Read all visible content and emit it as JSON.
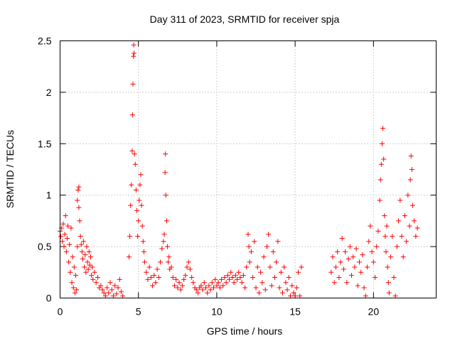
{
  "chart_data": {
    "type": "scatter",
    "title": "Day 311 of 2023, SRMTID for receiver spja",
    "xlabel": "GPS time / hours",
    "ylabel": "SRMTID / TECUs",
    "xlim": [
      0,
      24
    ],
    "ylim": [
      0,
      2.5
    ],
    "x_ticks": [
      0,
      5,
      10,
      15,
      20
    ],
    "x_tick_labels": [
      "0",
      "5",
      "10",
      "15",
      "20"
    ],
    "y_ticks": [
      0,
      0.5,
      1,
      1.5,
      2,
      2.5
    ],
    "y_tick_labels": [
      "0",
      "0.5",
      "1",
      "1.5",
      "2",
      "2.5"
    ],
    "grid": true,
    "marker": "+",
    "color": "#ff0000",
    "series": [
      {
        "name": "SRMTID",
        "points": [
          [
            0.0,
            0.65
          ],
          [
            0.05,
            0.6
          ],
          [
            0.1,
            0.68
          ],
          [
            0.15,
            0.55
          ],
          [
            0.2,
            0.72
          ],
          [
            0.25,
            0.5
          ],
          [
            0.3,
            0.62
          ],
          [
            0.35,
            0.8
          ],
          [
            0.4,
            0.45
          ],
          [
            0.45,
            0.58
          ],
          [
            0.5,
            0.7
          ],
          [
            0.55,
            0.35
          ],
          [
            0.6,
            0.52
          ],
          [
            0.65,
            0.25
          ],
          [
            0.7,
            0.68
          ],
          [
            0.75,
            0.15
          ],
          [
            0.8,
            0.4
          ],
          [
            0.85,
            0.1
          ],
          [
            0.9,
            0.3
          ],
          [
            0.95,
            0.05
          ],
          [
            1.0,
            0.22
          ],
          [
            1.05,
            0.08
          ],
          [
            1.1,
            0.5
          ],
          [
            1.1,
            0.95
          ],
          [
            1.15,
            1.05
          ],
          [
            1.2,
            1.08
          ],
          [
            1.2,
            0.88
          ],
          [
            1.25,
            0.75
          ],
          [
            1.3,
            0.6
          ],
          [
            1.35,
            0.52
          ],
          [
            1.4,
            0.45
          ],
          [
            1.45,
            0.38
          ],
          [
            1.5,
            0.55
          ],
          [
            1.55,
            0.3
          ],
          [
            1.6,
            0.42
          ],
          [
            1.65,
            0.25
          ],
          [
            1.7,
            0.5
          ],
          [
            1.75,
            0.35
          ],
          [
            1.8,
            0.28
          ],
          [
            1.85,
            0.45
          ],
          [
            1.9,
            0.32
          ],
          [
            1.95,
            0.4
          ],
          [
            2.0,
            0.22
          ],
          [
            2.05,
            0.3
          ],
          [
            2.1,
            0.18
          ],
          [
            2.2,
            0.25
          ],
          [
            2.3,
            0.15
          ],
          [
            2.4,
            0.2
          ],
          [
            2.5,
            0.1
          ],
          [
            2.6,
            0.12
          ],
          [
            2.7,
            0.08
          ],
          [
            2.8,
            0.05
          ],
          [
            2.9,
            0.02
          ],
          [
            3.0,
            0.1
          ],
          [
            3.1,
            0.05
          ],
          [
            3.2,
            0.15
          ],
          [
            3.3,
            0.08
          ],
          [
            3.4,
            0.02
          ],
          [
            3.5,
            0.12
          ],
          [
            3.6,
            0.04
          ],
          [
            3.7,
            0.1
          ],
          [
            3.8,
            0.18
          ],
          [
            3.9,
            0.06
          ],
          [
            4.0,
            0.02
          ],
          [
            4.4,
            0.4
          ],
          [
            4.45,
            0.6
          ],
          [
            4.5,
            0.9
          ],
          [
            4.55,
            1.1
          ],
          [
            4.6,
            1.43
          ],
          [
            4.62,
            1.78
          ],
          [
            4.65,
            2.08
          ],
          [
            4.68,
            2.35
          ],
          [
            4.7,
            2.46
          ],
          [
            4.72,
            2.38
          ],
          [
            4.75,
            1.4
          ],
          [
            4.8,
            1.3
          ],
          [
            4.85,
            1.05
          ],
          [
            4.9,
            0.85
          ],
          [
            4.95,
            0.6
          ],
          [
            5.0,
            0.75
          ],
          [
            5.05,
            0.95
          ],
          [
            5.1,
            1.1
          ],
          [
            5.15,
            1.2
          ],
          [
            5.2,
            0.9
          ],
          [
            5.25,
            0.7
          ],
          [
            5.3,
            0.55
          ],
          [
            5.35,
            0.45
          ],
          [
            5.4,
            0.35
          ],
          [
            5.5,
            0.25
          ],
          [
            5.6,
            0.18
          ],
          [
            5.7,
            0.3
          ],
          [
            5.8,
            0.2
          ],
          [
            5.9,
            0.12
          ],
          [
            6.0,
            0.22
          ],
          [
            6.1,
            0.15
          ],
          [
            6.2,
            0.28
          ],
          [
            6.3,
            0.2
          ],
          [
            6.4,
            0.35
          ],
          [
            6.5,
            0.48
          ],
          [
            6.6,
            0.55
          ],
          [
            6.65,
            0.62
          ],
          [
            6.7,
            1.22
          ],
          [
            6.72,
            1.4
          ],
          [
            6.75,
            1.0
          ],
          [
            6.8,
            0.75
          ],
          [
            6.85,
            0.5
          ],
          [
            6.9,
            0.35
          ],
          [
            6.95,
            0.4
          ],
          [
            7.0,
            0.28
          ],
          [
            7.1,
            0.3
          ],
          [
            7.2,
            0.2
          ],
          [
            7.3,
            0.12
          ],
          [
            7.4,
            0.18
          ],
          [
            7.5,
            0.1
          ],
          [
            7.6,
            0.15
          ],
          [
            7.7,
            0.08
          ],
          [
            7.8,
            0.12
          ],
          [
            7.9,
            0.18
          ],
          [
            8.0,
            0.22
          ],
          [
            8.1,
            0.3
          ],
          [
            8.2,
            0.35
          ],
          [
            8.3,
            0.28
          ],
          [
            8.4,
            0.2
          ],
          [
            8.5,
            0.15
          ],
          [
            8.6,
            0.1
          ],
          [
            8.7,
            0.08
          ],
          [
            8.8,
            0.05
          ],
          [
            8.9,
            0.1
          ],
          [
            9.0,
            0.12
          ],
          [
            9.1,
            0.08
          ],
          [
            9.2,
            0.15
          ],
          [
            9.3,
            0.1
          ],
          [
            9.4,
            0.05
          ],
          [
            9.5,
            0.12
          ],
          [
            9.6,
            0.08
          ],
          [
            9.7,
            0.15
          ],
          [
            9.8,
            0.1
          ],
          [
            9.9,
            0.18
          ],
          [
            10.0,
            0.12
          ],
          [
            10.1,
            0.15
          ],
          [
            10.2,
            0.1
          ],
          [
            10.3,
            0.18
          ],
          [
            10.4,
            0.12
          ],
          [
            10.5,
            0.2
          ],
          [
            10.6,
            0.15
          ],
          [
            10.7,
            0.22
          ],
          [
            10.8,
            0.18
          ],
          [
            10.9,
            0.25
          ],
          [
            11.0,
            0.2
          ],
          [
            11.1,
            0.15
          ],
          [
            11.2,
            0.22
          ],
          [
            11.3,
            0.18
          ],
          [
            11.4,
            0.25
          ],
          [
            11.5,
            0.2
          ],
          [
            11.6,
            0.15
          ],
          [
            11.7,
            0.22
          ],
          [
            11.8,
            0.1
          ],
          [
            11.9,
            0.3
          ],
          [
            12.0,
            0.62
          ],
          [
            12.05,
            0.5
          ],
          [
            12.1,
            0.35
          ],
          [
            12.2,
            0.45
          ],
          [
            12.3,
            0.2
          ],
          [
            12.4,
            0.55
          ],
          [
            12.5,
            0.1
          ],
          [
            12.6,
            0.3
          ],
          [
            12.7,
            0.05
          ],
          [
            12.8,
            0.25
          ],
          [
            12.9,
            0.15
          ],
          [
            13.0,
            0.4
          ],
          [
            13.1,
            0.08
          ],
          [
            13.2,
            0.5
          ],
          [
            13.3,
            0.62
          ],
          [
            13.4,
            0.3
          ],
          [
            13.5,
            0.12
          ],
          [
            13.6,
            0.45
          ],
          [
            13.7,
            0.2
          ],
          [
            13.8,
            0.35
          ],
          [
            13.9,
            0.55
          ],
          [
            14.0,
            0.1
          ],
          [
            14.1,
            0.25
          ],
          [
            14.2,
            0.05
          ],
          [
            14.3,
            0.3
          ],
          [
            14.4,
            0.15
          ],
          [
            14.5,
            0.08
          ],
          [
            14.6,
            0.2
          ],
          [
            14.7,
            0.02
          ],
          [
            14.8,
            0.12
          ],
          [
            14.9,
            0.05
          ],
          [
            15.0,
            0.02
          ],
          [
            15.1,
            0.1
          ],
          [
            15.2,
            0.25
          ],
          [
            15.3,
            0.02
          ],
          [
            15.4,
            0.3
          ],
          [
            17.3,
            0.25
          ],
          [
            17.4,
            0.4
          ],
          [
            17.5,
            0.15
          ],
          [
            17.6,
            0.3
          ],
          [
            17.7,
            0.45
          ],
          [
            17.8,
            0.2
          ],
          [
            17.9,
            0.35
          ],
          [
            18.0,
            0.58
          ],
          [
            18.1,
            0.28
          ],
          [
            18.2,
            0.45
          ],
          [
            18.3,
            0.15
          ],
          [
            18.4,
            0.38
          ],
          [
            18.5,
            0.5
          ],
          [
            18.6,
            0.22
          ],
          [
            18.7,
            0.4
          ],
          [
            18.8,
            0.3
          ],
          [
            18.9,
            0.48
          ],
          [
            19.0,
            0.12
          ],
          [
            19.1,
            0.35
          ],
          [
            19.2,
            0.25
          ],
          [
            19.3,
            0.42
          ],
          [
            19.4,
            0.1
          ],
          [
            19.5,
            0.02
          ],
          [
            19.6,
            0.3
          ],
          [
            19.7,
            0.55
          ],
          [
            19.8,
            0.7
          ],
          [
            19.9,
            0.45
          ],
          [
            20.0,
            0.35
          ],
          [
            20.1,
            0.2
          ],
          [
            20.2,
            0.5
          ],
          [
            20.3,
            0.65
          ],
          [
            20.4,
            0.95
          ],
          [
            20.45,
            1.15
          ],
          [
            20.5,
            1.3
          ],
          [
            20.55,
            1.5
          ],
          [
            20.6,
            1.65
          ],
          [
            20.65,
            1.35
          ],
          [
            20.7,
            0.8
          ],
          [
            20.75,
            0.6
          ],
          [
            20.8,
            0.45
          ],
          [
            20.85,
            0.7
          ],
          [
            20.9,
            0.3
          ],
          [
            20.95,
            0.15
          ],
          [
            21.0,
            0.05
          ],
          [
            21.1,
            0.4
          ],
          [
            21.2,
            0.6
          ],
          [
            21.3,
            0.2
          ],
          [
            21.4,
            0.02
          ],
          [
            21.5,
            0.5
          ],
          [
            21.6,
            0.75
          ],
          [
            21.7,
            0.95
          ],
          [
            21.8,
            0.6
          ],
          [
            21.9,
            0.4
          ],
          [
            22.0,
            0.8
          ],
          [
            22.1,
            0.55
          ],
          [
            22.2,
            1.0
          ],
          [
            22.3,
            0.7
          ],
          [
            22.35,
            1.15
          ],
          [
            22.4,
            1.38
          ],
          [
            22.45,
            1.25
          ],
          [
            22.5,
            0.9
          ],
          [
            22.6,
            0.75
          ],
          [
            22.7,
            0.6
          ],
          [
            22.8,
            0.68
          ]
        ]
      }
    ]
  }
}
